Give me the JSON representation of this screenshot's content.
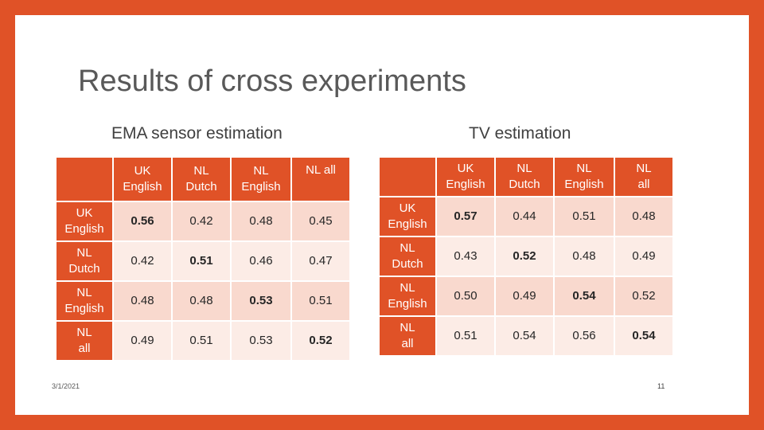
{
  "slide": {
    "title": "Results of cross experiments",
    "date": "3/1/2021",
    "page_number": "11"
  },
  "colors": {
    "accent": "#E05227",
    "row_even": "#F9D9CE",
    "row_odd": "#FCECE6"
  },
  "tables": [
    {
      "caption": "EMA sensor estimation",
      "col_headers": [
        [
          "UK",
          "English"
        ],
        [
          "NL",
          "Dutch"
        ],
        [
          "NL",
          "English"
        ],
        [
          "NL all",
          ""
        ]
      ],
      "rows": [
        {
          "head": [
            "UK",
            "English"
          ],
          "values": [
            "0.56",
            "0.42",
            "0.48",
            "0.45"
          ],
          "bold_index": 0
        },
        {
          "head": [
            "NL",
            "Dutch"
          ],
          "values": [
            "0.42",
            "0.51",
            "0.46",
            "0.47"
          ],
          "bold_index": 1
        },
        {
          "head": [
            "NL",
            "English"
          ],
          "values": [
            "0.48",
            "0.48",
            "0.53",
            "0.51"
          ],
          "bold_index": 2
        },
        {
          "head": [
            "NL",
            "all"
          ],
          "values": [
            "0.49",
            "0.51",
            "0.53",
            "0.52"
          ],
          "bold_index": 3
        }
      ]
    },
    {
      "caption": "TV estimation",
      "col_headers": [
        [
          "UK",
          "English"
        ],
        [
          "NL",
          "Dutch"
        ],
        [
          "NL",
          "English"
        ],
        [
          "NL",
          "all"
        ]
      ],
      "rows": [
        {
          "head": [
            "UK",
            "English"
          ],
          "values": [
            "0.57",
            "0.44",
            "0.51",
            "0.48"
          ],
          "bold_index": 0
        },
        {
          "head": [
            "NL",
            "Dutch"
          ],
          "values": [
            "0.43",
            "0.52",
            "0.48",
            "0.49"
          ],
          "bold_index": 1
        },
        {
          "head": [
            "NL",
            "English"
          ],
          "values": [
            "0.50",
            "0.49",
            "0.54",
            "0.52"
          ],
          "bold_index": 2
        },
        {
          "head": [
            "NL",
            "all"
          ],
          "values": [
            "0.51",
            "0.54",
            "0.56",
            "0.54"
          ],
          "bold_index": 3
        }
      ]
    }
  ]
}
